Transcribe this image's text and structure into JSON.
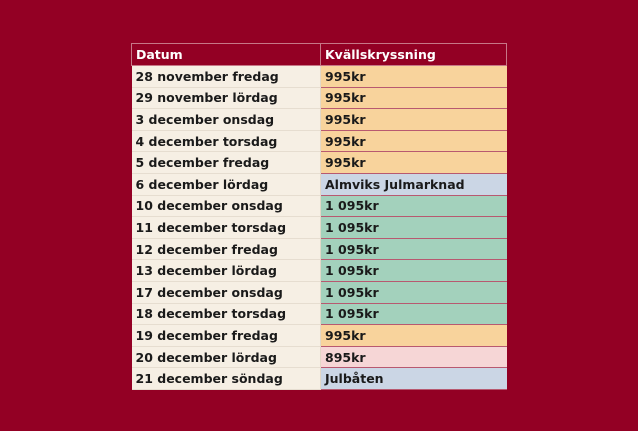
{
  "table": {
    "headers": {
      "date": "Datum",
      "price": "Kvällskryssning"
    },
    "colors": {
      "orange": "#f8d39c",
      "blue": "#cbd6e5",
      "green": "#a3d1bc",
      "pink": "#f6d6d6",
      "background": "#930024"
    },
    "rows": [
      {
        "date": "28 november fredag",
        "price": "995kr",
        "color": "orange"
      },
      {
        "date": "29 november lördag",
        "price": "995kr",
        "color": "orange"
      },
      {
        "date": "3 december onsdag",
        "price": "995kr",
        "color": "orange"
      },
      {
        "date": "4 december torsdag",
        "price": "995kr",
        "color": "orange"
      },
      {
        "date": "5 december fredag",
        "price": "995kr",
        "color": "orange"
      },
      {
        "date": "6 december lördag",
        "price": "Almviks Julmarknad",
        "color": "blue"
      },
      {
        "date": "10 december onsdag",
        "price": "1 095kr",
        "color": "green"
      },
      {
        "date": "11 december torsdag",
        "price": "1 095kr",
        "color": "green"
      },
      {
        "date": "12 december fredag",
        "price": "1 095kr",
        "color": "green"
      },
      {
        "date": "13 december lördag",
        "price": "1 095kr",
        "color": "green"
      },
      {
        "date": "17 december onsdag",
        "price": "1 095kr",
        "color": "green"
      },
      {
        "date": "18 december torsdag",
        "price": "1 095kr",
        "color": "green"
      },
      {
        "date": "19 december fredag",
        "price": "995kr",
        "color": "orange"
      },
      {
        "date": "20 december lördag",
        "price": "895kr",
        "color": "pink"
      },
      {
        "date": "21 december söndag",
        "price": "Julbåten",
        "color": "blue"
      }
    ]
  }
}
